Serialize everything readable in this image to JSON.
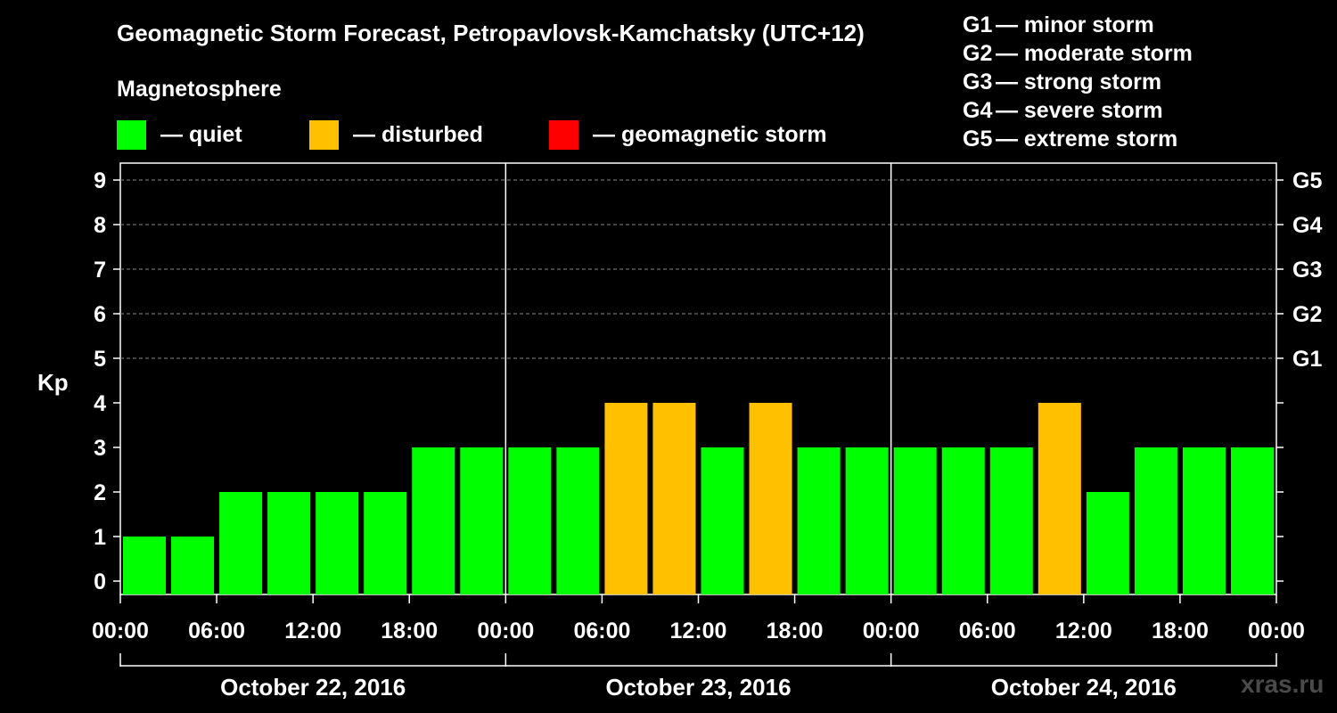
{
  "title": "Geomagnetic Storm Forecast, Petropavlovsk-Kamchatsky (UTC+12)",
  "magnetosphere_label": "Magnetosphere",
  "legend": [
    {
      "label": "— quiet",
      "color": "#00ff00"
    },
    {
      "label": "— disturbed",
      "color": "#ffc000"
    },
    {
      "label": "— geomagnetic storm",
      "color": "#ff0000"
    }
  ],
  "storm_levels": [
    {
      "code": "G1",
      "desc": "— minor storm",
      "kp": 5
    },
    {
      "code": "G2",
      "desc": "— moderate storm",
      "kp": 6
    },
    {
      "code": "G3",
      "desc": "— strong storm",
      "kp": 7
    },
    {
      "code": "G4",
      "desc": "— severe storm",
      "kp": 8
    },
    {
      "code": "G5",
      "desc": "— extreme storm",
      "kp": 9
    }
  ],
  "watermark": "xras.ru",
  "chart_data": {
    "type": "bar",
    "ylabel": "Kp",
    "ylim": [
      0,
      9
    ],
    "yticks": [
      0,
      1,
      2,
      3,
      4,
      5,
      6,
      7,
      8,
      9
    ],
    "grid": true,
    "x_tick_labels": [
      "00:00",
      "06:00",
      "12:00",
      "18:00",
      "00:00",
      "06:00",
      "12:00",
      "18:00",
      "00:00",
      "06:00",
      "12:00",
      "18:00",
      "00:00"
    ],
    "days": [
      "October 22, 2016",
      "October 23, 2016",
      "October 24, 2016"
    ],
    "values": [
      1,
      1,
      2,
      2,
      2,
      2,
      3,
      3,
      3,
      3,
      4,
      4,
      3,
      4,
      3,
      3,
      3,
      3,
      3,
      4,
      2,
      3,
      3,
      3
    ],
    "colors": {
      "quiet": "#00ff00",
      "disturbed": "#ffc000",
      "storm": "#ff0000"
    }
  }
}
